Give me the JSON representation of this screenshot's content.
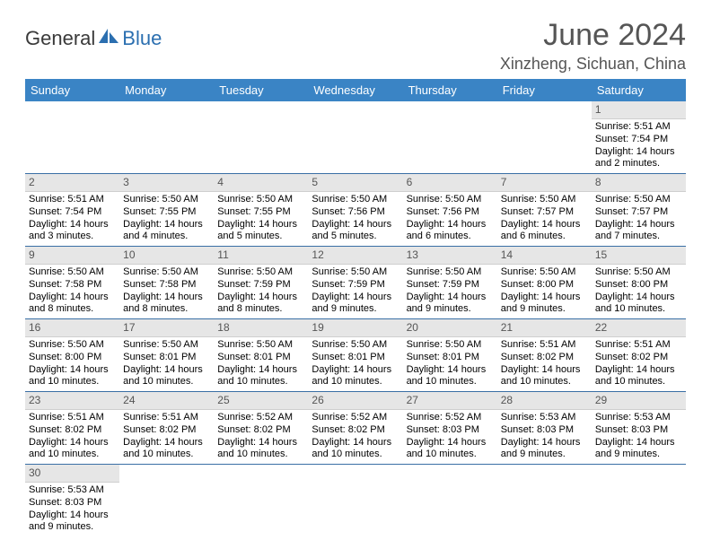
{
  "brand": {
    "text1": "General",
    "text2": "Blue"
  },
  "title": "June 2024",
  "location": "Xinzheng, Sichuan, China",
  "colors": {
    "header_bg": "#3a84c5",
    "header_fg": "#ffffff",
    "daynum_bg": "#e6e6e6",
    "rule": "#3a6fa5",
    "title_color": "#555555"
  },
  "dayHeaders": [
    "Sunday",
    "Monday",
    "Tuesday",
    "Wednesday",
    "Thursday",
    "Friday",
    "Saturday"
  ],
  "startOffset": 6,
  "days": [
    {
      "n": 1,
      "sr": "5:51 AM",
      "ss": "7:54 PM",
      "dl": "14 hours and 2 minutes."
    },
    {
      "n": 2,
      "sr": "5:51 AM",
      "ss": "7:54 PM",
      "dl": "14 hours and 3 minutes."
    },
    {
      "n": 3,
      "sr": "5:50 AM",
      "ss": "7:55 PM",
      "dl": "14 hours and 4 minutes."
    },
    {
      "n": 4,
      "sr": "5:50 AM",
      "ss": "7:55 PM",
      "dl": "14 hours and 5 minutes."
    },
    {
      "n": 5,
      "sr": "5:50 AM",
      "ss": "7:56 PM",
      "dl": "14 hours and 5 minutes."
    },
    {
      "n": 6,
      "sr": "5:50 AM",
      "ss": "7:56 PM",
      "dl": "14 hours and 6 minutes."
    },
    {
      "n": 7,
      "sr": "5:50 AM",
      "ss": "7:57 PM",
      "dl": "14 hours and 6 minutes."
    },
    {
      "n": 8,
      "sr": "5:50 AM",
      "ss": "7:57 PM",
      "dl": "14 hours and 7 minutes."
    },
    {
      "n": 9,
      "sr": "5:50 AM",
      "ss": "7:58 PM",
      "dl": "14 hours and 8 minutes."
    },
    {
      "n": 10,
      "sr": "5:50 AM",
      "ss": "7:58 PM",
      "dl": "14 hours and 8 minutes."
    },
    {
      "n": 11,
      "sr": "5:50 AM",
      "ss": "7:59 PM",
      "dl": "14 hours and 8 minutes."
    },
    {
      "n": 12,
      "sr": "5:50 AM",
      "ss": "7:59 PM",
      "dl": "14 hours and 9 minutes."
    },
    {
      "n": 13,
      "sr": "5:50 AM",
      "ss": "7:59 PM",
      "dl": "14 hours and 9 minutes."
    },
    {
      "n": 14,
      "sr": "5:50 AM",
      "ss": "8:00 PM",
      "dl": "14 hours and 9 minutes."
    },
    {
      "n": 15,
      "sr": "5:50 AM",
      "ss": "8:00 PM",
      "dl": "14 hours and 10 minutes."
    },
    {
      "n": 16,
      "sr": "5:50 AM",
      "ss": "8:00 PM",
      "dl": "14 hours and 10 minutes."
    },
    {
      "n": 17,
      "sr": "5:50 AM",
      "ss": "8:01 PM",
      "dl": "14 hours and 10 minutes."
    },
    {
      "n": 18,
      "sr": "5:50 AM",
      "ss": "8:01 PM",
      "dl": "14 hours and 10 minutes."
    },
    {
      "n": 19,
      "sr": "5:50 AM",
      "ss": "8:01 PM",
      "dl": "14 hours and 10 minutes."
    },
    {
      "n": 20,
      "sr": "5:50 AM",
      "ss": "8:01 PM",
      "dl": "14 hours and 10 minutes."
    },
    {
      "n": 21,
      "sr": "5:51 AM",
      "ss": "8:02 PM",
      "dl": "14 hours and 10 minutes."
    },
    {
      "n": 22,
      "sr": "5:51 AM",
      "ss": "8:02 PM",
      "dl": "14 hours and 10 minutes."
    },
    {
      "n": 23,
      "sr": "5:51 AM",
      "ss": "8:02 PM",
      "dl": "14 hours and 10 minutes."
    },
    {
      "n": 24,
      "sr": "5:51 AM",
      "ss": "8:02 PM",
      "dl": "14 hours and 10 minutes."
    },
    {
      "n": 25,
      "sr": "5:52 AM",
      "ss": "8:02 PM",
      "dl": "14 hours and 10 minutes."
    },
    {
      "n": 26,
      "sr": "5:52 AM",
      "ss": "8:02 PM",
      "dl": "14 hours and 10 minutes."
    },
    {
      "n": 27,
      "sr": "5:52 AM",
      "ss": "8:03 PM",
      "dl": "14 hours and 10 minutes."
    },
    {
      "n": 28,
      "sr": "5:53 AM",
      "ss": "8:03 PM",
      "dl": "14 hours and 9 minutes."
    },
    {
      "n": 29,
      "sr": "5:53 AM",
      "ss": "8:03 PM",
      "dl": "14 hours and 9 minutes."
    },
    {
      "n": 30,
      "sr": "5:53 AM",
      "ss": "8:03 PM",
      "dl": "14 hours and 9 minutes."
    }
  ],
  "labels": {
    "sunrise": "Sunrise:",
    "sunset": "Sunset:",
    "daylight": "Daylight:"
  }
}
